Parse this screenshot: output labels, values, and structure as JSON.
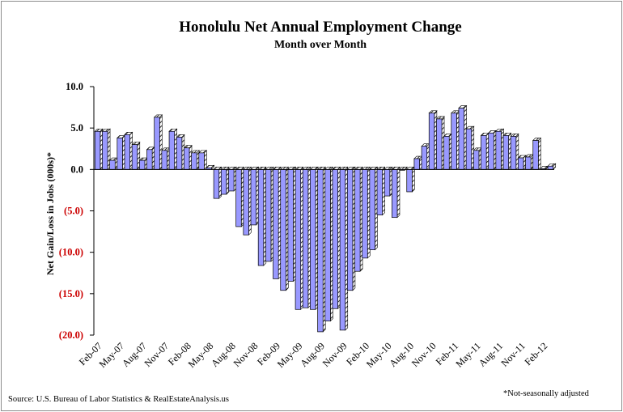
{
  "chart_data": {
    "type": "bar",
    "title": "Honolulu Net Annual  Employment  Change",
    "subtitle": "Month over Month",
    "ylabel": "Net Gain/Loss in Jobs (000s)*",
    "xlabel": "",
    "ylim": [
      -20,
      10
    ],
    "yticks": [
      {
        "value": 10,
        "label": "10.0",
        "color": "#000000"
      },
      {
        "value": 5,
        "label": "5.0",
        "color": "#000000"
      },
      {
        "value": 0,
        "label": "0.0",
        "color": "#000000"
      },
      {
        "value": -5,
        "label": "(5.0)",
        "color": "#cc0000"
      },
      {
        "value": -10,
        "label": "(10.0)",
        "color": "#cc0000"
      },
      {
        "value": -15,
        "label": "(15.0)",
        "color": "#cc0000"
      },
      {
        "value": -20,
        "label": "(20.0)",
        "color": "#cc0000"
      }
    ],
    "categories": [
      "Feb-07",
      "Mar-07",
      "Apr-07",
      "May-07",
      "Jun-07",
      "Jul-07",
      "Aug-07",
      "Sep-07",
      "Oct-07",
      "Nov-07",
      "Dec-07",
      "Jan-08",
      "Feb-08",
      "Mar-08",
      "Apr-08",
      "May-08",
      "Jun-08",
      "Jul-08",
      "Aug-08",
      "Sep-08",
      "Oct-08",
      "Nov-08",
      "Dec-08",
      "Jan-09",
      "Feb-09",
      "Mar-09",
      "Apr-09",
      "May-09",
      "Jun-09",
      "Jul-09",
      "Aug-09",
      "Sep-09",
      "Oct-09",
      "Nov-09",
      "Dec-09",
      "Jan-10",
      "Feb-10",
      "Mar-10",
      "Apr-10",
      "May-10",
      "Jun-10",
      "Jul-10",
      "Aug-10",
      "Sep-10",
      "Oct-10",
      "Nov-10",
      "Dec-10",
      "Jan-11",
      "Feb-11",
      "Mar-11",
      "Apr-11",
      "May-11",
      "Jun-11",
      "Jul-11",
      "Aug-11",
      "Sep-11",
      "Oct-11",
      "Nov-11",
      "Dec-11",
      "Jan-12",
      "Feb-12",
      "Mar-12"
    ],
    "xtick_labels": [
      "Feb-07",
      "May-07",
      "Aug-07",
      "Nov-07",
      "Feb-08",
      "May-08",
      "Aug-08",
      "Nov-08",
      "Feb-09",
      "May-09",
      "Aug-09",
      "Nov-09",
      "Feb-10",
      "May-10",
      "Aug-10",
      "Nov-10",
      "Feb-11",
      "May-11",
      "Aug-11",
      "Nov-11",
      "Feb-12"
    ],
    "values": [
      4.6,
      4.6,
      1.1,
      3.8,
      4.2,
      3.0,
      1.1,
      2.4,
      6.3,
      2.3,
      4.6,
      3.9,
      2.6,
      2.0,
      2.0,
      0.2,
      -3.5,
      -3.0,
      -2.6,
      -6.9,
      -7.9,
      -6.7,
      -11.6,
      -11.1,
      -13.2,
      -14.6,
      -13.5,
      -16.9,
      -16.7,
      -16.9,
      -19.6,
      -18.3,
      -16.8,
      -19.4,
      -14.6,
      -12.3,
      -10.7,
      -9.7,
      -5.5,
      -3.2,
      -5.8,
      -0.1,
      -2.7,
      1.3,
      2.8,
      6.8,
      6.1,
      4.0,
      6.8,
      7.4,
      4.9,
      2.3,
      4.1,
      4.4,
      4.6,
      4.1,
      4.0,
      1.4,
      1.5,
      3.5,
      0.1,
      0.4
    ],
    "bar_color": "#9999ff",
    "grid": false,
    "legend": "none"
  },
  "footer": {
    "source": "Source: U.S. Bureau of Labor Statistics & RealEstateAnalysis.us",
    "note": "*Not-seasonally adjusted"
  }
}
